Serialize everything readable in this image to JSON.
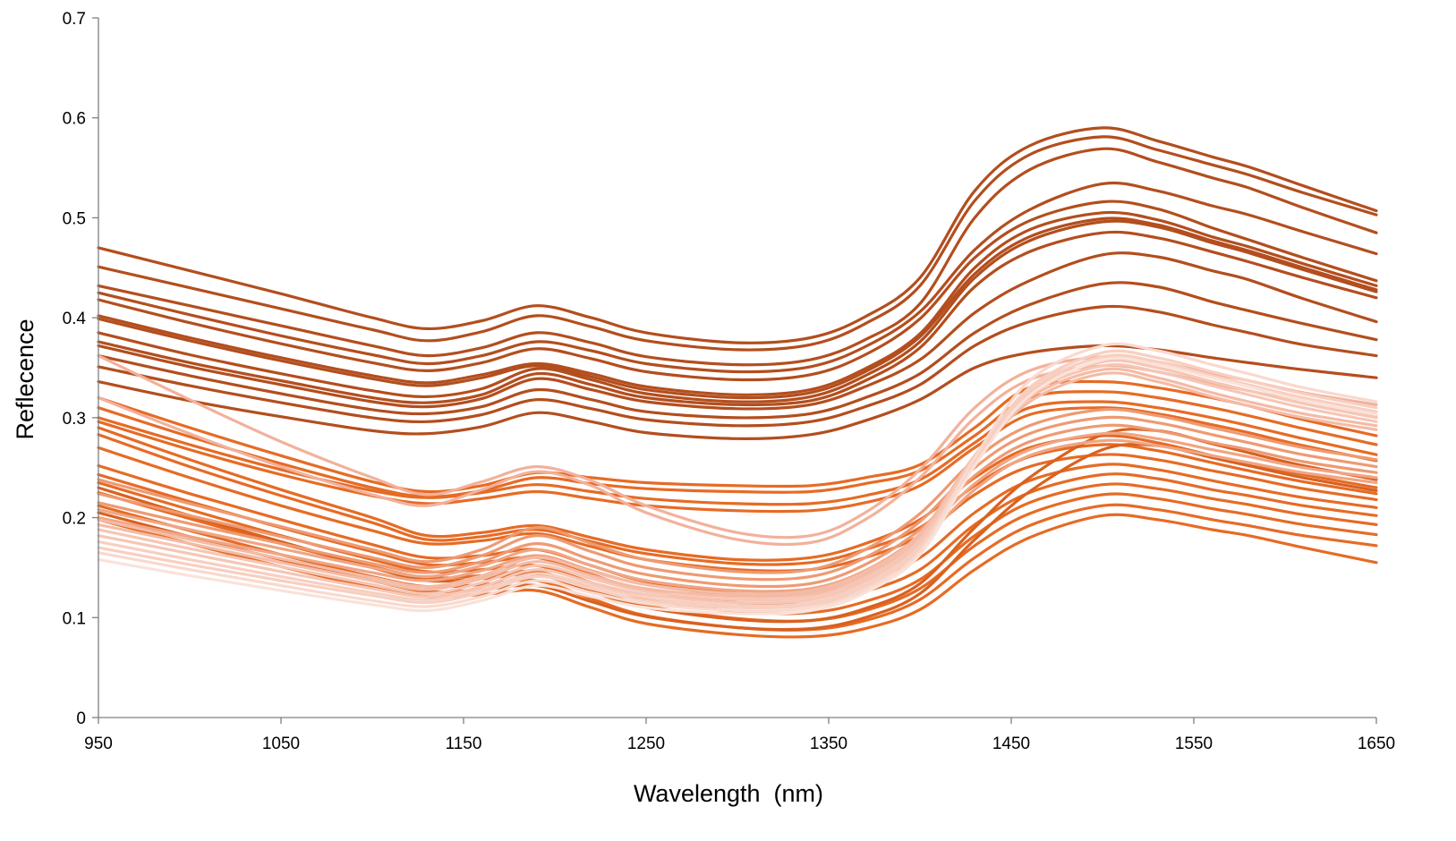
{
  "chart_data": {
    "type": "line",
    "title": "",
    "xlabel": "Wavelength  (nm)",
    "ylabel": "Reflecence",
    "xlim": [
      950,
      1650
    ],
    "ylim": [
      0,
      0.7
    ],
    "x_ticks": [
      "950",
      "1050",
      "1150",
      "1250",
      "1350",
      "1450",
      "1550",
      "1650"
    ],
    "y_ticks": [
      "0",
      "0.1",
      "0.2",
      "0.3",
      "0.4",
      "0.5",
      "0.6",
      "0.7"
    ],
    "grid": false,
    "legend": "none",
    "x": [
      950,
      1000,
      1050,
      1100,
      1130,
      1160,
      1190,
      1220,
      1250,
      1300,
      1340,
      1370,
      1400,
      1430,
      1460,
      1500,
      1530,
      1560,
      1580,
      1610,
      1650
    ],
    "series": [
      {
        "color": "#b34e1e",
        "values": [
          0.47,
          0.447,
          0.424,
          0.4,
          0.389,
          0.397,
          0.412,
          0.4,
          0.385,
          0.375,
          0.38,
          0.401,
          0.44,
          0.527,
          0.572,
          0.59,
          0.577,
          0.561,
          0.551,
          0.532,
          0.507
        ]
      },
      {
        "color": "#b34e1e",
        "values": [
          0.451,
          0.43,
          0.409,
          0.388,
          0.377,
          0.386,
          0.402,
          0.391,
          0.377,
          0.368,
          0.373,
          0.394,
          0.432,
          0.517,
          0.563,
          0.581,
          0.568,
          0.553,
          0.543,
          0.525,
          0.503
        ]
      },
      {
        "color": "#b34e1e",
        "values": [
          0.432,
          0.412,
          0.392,
          0.372,
          0.362,
          0.37,
          0.385,
          0.375,
          0.361,
          0.353,
          0.358,
          0.378,
          0.414,
          0.5,
          0.548,
          0.569,
          0.556,
          0.54,
          0.53,
          0.51,
          0.485
        ]
      },
      {
        "color": "#b34e1e",
        "values": [
          0.425,
          0.403,
          0.382,
          0.363,
          0.354,
          0.362,
          0.376,
          0.367,
          0.354,
          0.346,
          0.351,
          0.371,
          0.406,
          0.468,
          0.508,
          0.534,
          0.527,
          0.512,
          0.503,
          0.486,
          0.464
        ]
      },
      {
        "color": "#b34e1e",
        "values": [
          0.418,
          0.395,
          0.374,
          0.355,
          0.347,
          0.355,
          0.369,
          0.359,
          0.346,
          0.338,
          0.343,
          0.363,
          0.399,
          0.46,
          0.497,
          0.516,
          0.509,
          0.49,
          0.478,
          0.46,
          0.437
        ]
      },
      {
        "color": "#b34e1e",
        "values": [
          0.402,
          0.38,
          0.36,
          0.342,
          0.335,
          0.343,
          0.354,
          0.344,
          0.331,
          0.323,
          0.328,
          0.349,
          0.384,
          0.45,
          0.488,
          0.505,
          0.498,
          0.481,
          0.471,
          0.454,
          0.432
        ]
      },
      {
        "color": "#b34e1e",
        "values": [
          0.399,
          0.377,
          0.357,
          0.339,
          0.332,
          0.34,
          0.352,
          0.341,
          0.328,
          0.32,
          0.325,
          0.346,
          0.381,
          0.444,
          0.481,
          0.499,
          0.493,
          0.477,
          0.467,
          0.45,
          0.428
        ]
      },
      {
        "color": "#b34e1e",
        "values": [
          0.385,
          0.363,
          0.344,
          0.327,
          0.321,
          0.329,
          0.349,
          0.338,
          0.324,
          0.316,
          0.321,
          0.342,
          0.376,
          0.44,
          0.477,
          0.496,
          0.491,
          0.475,
          0.465,
          0.448,
          0.426
        ]
      },
      {
        "color": "#b34e1e",
        "values": [
          0.376,
          0.355,
          0.337,
          0.32,
          0.315,
          0.323,
          0.344,
          0.333,
          0.32,
          0.313,
          0.317,
          0.337,
          0.37,
          0.431,
          0.466,
          0.485,
          0.48,
          0.466,
          0.456,
          0.44,
          0.42
        ]
      },
      {
        "color": "#b34e1e",
        "values": [
          0.372,
          0.351,
          0.333,
          0.316,
          0.311,
          0.319,
          0.339,
          0.328,
          0.316,
          0.309,
          0.313,
          0.331,
          0.358,
          0.405,
          0.437,
          0.463,
          0.461,
          0.447,
          0.438,
          0.419,
          0.396
        ]
      },
      {
        "color": "#b34e1e",
        "values": [
          0.362,
          0.342,
          0.324,
          0.308,
          0.304,
          0.311,
          0.328,
          0.318,
          0.306,
          0.3,
          0.304,
          0.32,
          0.344,
          0.385,
          0.413,
          0.434,
          0.431,
          0.416,
          0.407,
          0.394,
          0.378
        ]
      },
      {
        "color": "#b34e1e",
        "values": [
          0.351,
          0.332,
          0.315,
          0.3,
          0.296,
          0.303,
          0.318,
          0.309,
          0.298,
          0.292,
          0.296,
          0.311,
          0.333,
          0.372,
          0.396,
          0.411,
          0.406,
          0.393,
          0.385,
          0.373,
          0.362
        ]
      },
      {
        "color": "#b34e1e",
        "values": [
          0.336,
          0.317,
          0.301,
          0.287,
          0.284,
          0.291,
          0.305,
          0.296,
          0.285,
          0.279,
          0.283,
          0.297,
          0.318,
          0.35,
          0.365,
          0.372,
          0.368,
          0.36,
          0.355,
          0.348,
          0.34
        ]
      },
      {
        "color": "#e66b25",
        "values": [
          0.32,
          0.29,
          0.262,
          0.236,
          0.226,
          0.232,
          0.245,
          0.24,
          0.235,
          0.232,
          0.232,
          0.24,
          0.253,
          0.29,
          0.33,
          0.336,
          0.33,
          0.32,
          0.312,
          0.298,
          0.282
        ]
      },
      {
        "color": "#e66b25",
        "values": [
          0.31,
          0.281,
          0.254,
          0.23,
          0.221,
          0.227,
          0.24,
          0.234,
          0.229,
          0.226,
          0.226,
          0.234,
          0.247,
          0.282,
          0.32,
          0.326,
          0.32,
          0.31,
          0.302,
          0.289,
          0.273
        ]
      },
      {
        "color": "#e66b25",
        "values": [
          0.3,
          0.273,
          0.248,
          0.227,
          0.22,
          0.225,
          0.233,
          0.226,
          0.219,
          0.214,
          0.214,
          0.222,
          0.238,
          0.275,
          0.31,
          0.316,
          0.31,
          0.3,
          0.292,
          0.279,
          0.263
        ]
      },
      {
        "color": "#e66b25",
        "values": [
          0.296,
          0.268,
          0.243,
          0.222,
          0.214,
          0.219,
          0.226,
          0.219,
          0.212,
          0.207,
          0.207,
          0.215,
          0.232,
          0.27,
          0.303,
          0.31,
          0.304,
          0.293,
          0.285,
          0.272,
          0.257
        ]
      },
      {
        "color": "#e66b25",
        "values": [
          0.29,
          0.258,
          0.228,
          0.2,
          0.182,
          0.185,
          0.192,
          0.18,
          0.168,
          0.158,
          0.16,
          0.174,
          0.198,
          0.24,
          0.27,
          0.282,
          0.275,
          0.262,
          0.254,
          0.243,
          0.23
        ]
      },
      {
        "color": "#e66b25",
        "values": [
          0.283,
          0.251,
          0.222,
          0.195,
          0.178,
          0.181,
          0.188,
          0.176,
          0.164,
          0.154,
          0.155,
          0.168,
          0.19,
          0.232,
          0.261,
          0.273,
          0.267,
          0.255,
          0.247,
          0.236,
          0.224
        ]
      },
      {
        "color": "#e66b25",
        "values": [
          0.27,
          0.24,
          0.212,
          0.187,
          0.174,
          0.177,
          0.184,
          0.171,
          0.158,
          0.148,
          0.148,
          0.16,
          0.182,
          0.223,
          0.251,
          0.263,
          0.258,
          0.247,
          0.24,
          0.229,
          0.218
        ]
      },
      {
        "color": "#e66b25",
        "values": [
          0.252,
          0.224,
          0.198,
          0.173,
          0.16,
          0.162,
          0.168,
          0.152,
          0.136,
          0.124,
          0.124,
          0.137,
          0.16,
          0.205,
          0.237,
          0.253,
          0.248,
          0.237,
          0.23,
          0.22,
          0.21
        ]
      },
      {
        "color": "#e66b25",
        "values": [
          0.243,
          0.216,
          0.19,
          0.166,
          0.153,
          0.155,
          0.16,
          0.143,
          0.127,
          0.115,
          0.114,
          0.126,
          0.148,
          0.193,
          0.225,
          0.243,
          0.239,
          0.228,
          0.222,
          0.212,
          0.202
        ]
      },
      {
        "color": "#e66b25",
        "values": [
          0.235,
          0.208,
          0.182,
          0.158,
          0.146,
          0.148,
          0.152,
          0.135,
          0.119,
          0.106,
          0.105,
          0.116,
          0.138,
          0.182,
          0.215,
          0.233,
          0.229,
          0.219,
          0.213,
          0.203,
          0.193
        ]
      },
      {
        "color": "#e66b25",
        "values": [
          0.225,
          0.199,
          0.174,
          0.151,
          0.14,
          0.142,
          0.146,
          0.129,
          0.112,
          0.099,
          0.097,
          0.107,
          0.129,
          0.172,
          0.204,
          0.223,
          0.219,
          0.209,
          0.203,
          0.193,
          0.183
        ]
      },
      {
        "color": "#e66b25",
        "values": [
          0.212,
          0.187,
          0.163,
          0.141,
          0.131,
          0.133,
          0.137,
          0.119,
          0.102,
          0.09,
          0.088,
          0.097,
          0.118,
          0.16,
          0.192,
          0.212,
          0.208,
          0.198,
          0.192,
          0.182,
          0.172
        ]
      },
      {
        "color": "#e66b25",
        "values": [
          0.198,
          0.174,
          0.151,
          0.13,
          0.121,
          0.123,
          0.127,
          0.11,
          0.094,
          0.083,
          0.081,
          0.089,
          0.108,
          0.148,
          0.18,
          0.202,
          0.198,
          0.188,
          0.182,
          0.17,
          0.155
        ]
      },
      {
        "color": "#d9611f",
        "values": [
          0.23,
          0.202,
          0.176,
          0.15,
          0.137,
          0.139,
          0.143,
          0.126,
          0.11,
          0.098,
          0.097,
          0.109,
          0.134,
          0.19,
          0.24,
          0.283,
          0.287,
          0.274,
          0.265,
          0.252,
          0.238
        ]
      },
      {
        "color": "#d9611f",
        "values": [
          0.205,
          0.181,
          0.158,
          0.137,
          0.126,
          0.128,
          0.132,
          0.116,
          0.101,
          0.09,
          0.089,
          0.1,
          0.124,
          0.178,
          0.226,
          0.268,
          0.272,
          0.26,
          0.252,
          0.24,
          0.227
        ]
      },
      {
        "color": "#ee9a72",
        "values": [
          0.238,
          0.214,
          0.191,
          0.168,
          0.156,
          0.168,
          0.19,
          0.174,
          0.158,
          0.146,
          0.148,
          0.168,
          0.204,
          0.258,
          0.292,
          0.308,
          0.302,
          0.29,
          0.282,
          0.27,
          0.258
        ]
      },
      {
        "color": "#ee9a72",
        "values": [
          0.224,
          0.202,
          0.181,
          0.16,
          0.15,
          0.162,
          0.182,
          0.166,
          0.15,
          0.139,
          0.141,
          0.16,
          0.196,
          0.25,
          0.284,
          0.3,
          0.295,
          0.283,
          0.275,
          0.263,
          0.251
        ]
      },
      {
        "color": "#ee9a72",
        "values": [
          0.215,
          0.194,
          0.174,
          0.154,
          0.145,
          0.156,
          0.174,
          0.158,
          0.143,
          0.132,
          0.134,
          0.153,
          0.188,
          0.242,
          0.276,
          0.292,
          0.287,
          0.275,
          0.268,
          0.256,
          0.245
        ]
      },
      {
        "color": "#f0a584",
        "values": [
          0.208,
          0.188,
          0.169,
          0.15,
          0.141,
          0.152,
          0.168,
          0.152,
          0.137,
          0.127,
          0.129,
          0.147,
          0.182,
          0.234,
          0.268,
          0.284,
          0.279,
          0.268,
          0.261,
          0.25,
          0.24
        ]
      },
      {
        "color": "#f0a584",
        "values": [
          0.2,
          0.181,
          0.163,
          0.145,
          0.137,
          0.147,
          0.162,
          0.147,
          0.133,
          0.123,
          0.125,
          0.142,
          0.176,
          0.228,
          0.262,
          0.277,
          0.272,
          0.262,
          0.255,
          0.245,
          0.235
        ]
      },
      {
        "color": "#f2b19b",
        "values": [
          0.32,
          0.284,
          0.251,
          0.223,
          0.212,
          0.228,
          0.246,
          0.232,
          0.205,
          0.178,
          0.175,
          0.198,
          0.24,
          0.3,
          0.338,
          0.352,
          0.346,
          0.334,
          0.327,
          0.315,
          0.302
        ]
      },
      {
        "color": "#f2b19b",
        "values": [
          0.362,
          0.318,
          0.276,
          0.24,
          0.223,
          0.236,
          0.251,
          0.237,
          0.212,
          0.185,
          0.182,
          0.205,
          0.248,
          0.31,
          0.347,
          0.361,
          0.356,
          0.344,
          0.337,
          0.325,
          0.313
        ]
      },
      {
        "color": "#f4bba6",
        "values": [
          0.198,
          0.178,
          0.159,
          0.14,
          0.131,
          0.142,
          0.16,
          0.146,
          0.133,
          0.124,
          0.127,
          0.146,
          0.184,
          0.262,
          0.32,
          0.348,
          0.34,
          0.325,
          0.316,
          0.304,
          0.292
        ]
      },
      {
        "color": "#f4bba6",
        "values": [
          0.193,
          0.174,
          0.155,
          0.137,
          0.128,
          0.139,
          0.156,
          0.142,
          0.129,
          0.121,
          0.124,
          0.143,
          0.18,
          0.258,
          0.316,
          0.344,
          0.336,
          0.321,
          0.312,
          0.3,
          0.288
        ]
      },
      {
        "color": "#f6c6b5",
        "values": [
          0.188,
          0.169,
          0.151,
          0.133,
          0.124,
          0.135,
          0.152,
          0.139,
          0.126,
          0.118,
          0.121,
          0.14,
          0.178,
          0.262,
          0.326,
          0.356,
          0.35,
          0.336,
          0.327,
          0.314,
          0.3
        ]
      },
      {
        "color": "#f6c6b5",
        "values": [
          0.182,
          0.164,
          0.146,
          0.129,
          0.121,
          0.131,
          0.148,
          0.135,
          0.123,
          0.115,
          0.118,
          0.137,
          0.175,
          0.259,
          0.323,
          0.352,
          0.346,
          0.332,
          0.323,
          0.31,
          0.296
        ]
      },
      {
        "color": "#f7cfc1",
        "values": [
          0.176,
          0.158,
          0.141,
          0.125,
          0.118,
          0.128,
          0.144,
          0.132,
          0.12,
          0.112,
          0.115,
          0.134,
          0.172,
          0.258,
          0.33,
          0.365,
          0.36,
          0.346,
          0.337,
          0.324,
          0.31
        ]
      },
      {
        "color": "#f7cfc1",
        "values": [
          0.17,
          0.153,
          0.137,
          0.122,
          0.115,
          0.125,
          0.141,
          0.129,
          0.117,
          0.11,
          0.113,
          0.131,
          0.169,
          0.255,
          0.327,
          0.361,
          0.356,
          0.342,
          0.333,
          0.32,
          0.306
        ]
      },
      {
        "color": "#f9d9ce",
        "values": [
          0.165,
          0.148,
          0.132,
          0.117,
          0.111,
          0.121,
          0.137,
          0.125,
          0.114,
          0.107,
          0.11,
          0.128,
          0.166,
          0.26,
          0.337,
          0.372,
          0.367,
          0.353,
          0.344,
          0.33,
          0.316
        ]
      },
      {
        "color": "#fae2d9",
        "values": [
          0.158,
          0.142,
          0.127,
          0.113,
          0.107,
          0.117,
          0.132,
          0.121,
          0.11,
          0.104,
          0.107,
          0.125,
          0.163,
          0.252,
          0.322,
          0.358,
          0.353,
          0.34,
          0.331,
          0.317,
          0.303
        ]
      }
    ]
  }
}
